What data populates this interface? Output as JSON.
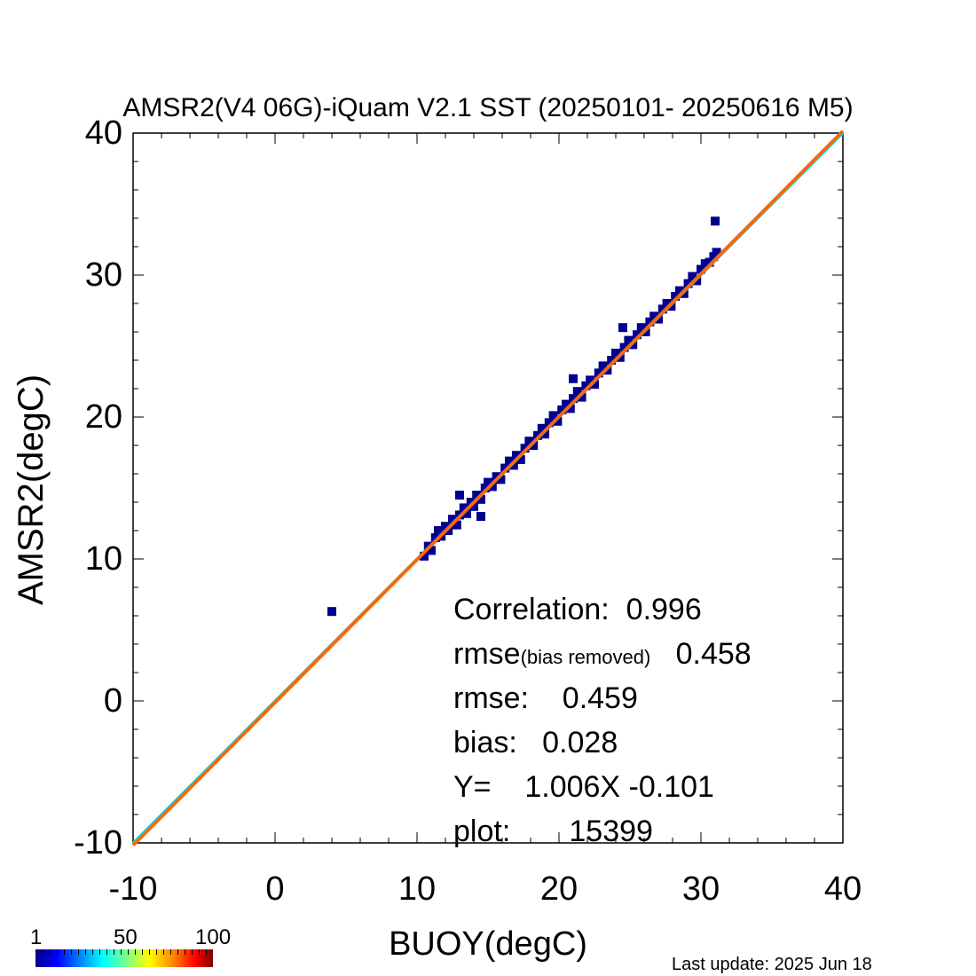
{
  "chart_data": {
    "type": "scatter",
    "title": "AMSR2(V4 06G)-iQuam V2.1 SST (20250101- 20250616 M5)",
    "xlabel": "BUOY(degC)",
    "ylabel": "AMSR2(degC)",
    "xlim": [
      -10,
      40
    ],
    "ylim": [
      -10,
      40
    ],
    "x_ticks": [
      "-10",
      "0",
      "10",
      "20",
      "30",
      "40"
    ],
    "y_ticks": [
      "-10",
      "0",
      "10",
      "20",
      "30",
      "40"
    ],
    "grid": false,
    "colorbar": {
      "labels": [
        "1",
        "50",
        "100"
      ]
    },
    "stats": {
      "correlation_label": "Correlation:",
      "correlation_value": "0.996",
      "rmse_br_label": "rmse",
      "rmse_br_sub": "(bias removed)",
      "rmse_br_value": "0.458",
      "rmse_label": "rmse:",
      "rmse_value": "0.459",
      "bias_label": "bias:",
      "bias_value": "0.028",
      "fit_label": "Y=",
      "fit_value": "1.006X -0.101",
      "plot_label": "plot:",
      "plot_value": "15399"
    },
    "series": [
      {
        "color": "#00008f",
        "density_min": 1,
        "points": [
          [
            10.5,
            10.2
          ],
          [
            10.8,
            10.9
          ],
          [
            11.0,
            10.6
          ],
          [
            11.3,
            11.5
          ],
          [
            11.5,
            12.0
          ],
          [
            11.7,
            11.6
          ],
          [
            12.0,
            12.3
          ],
          [
            12.2,
            12.0
          ],
          [
            12.5,
            12.8
          ],
          [
            12.8,
            12.4
          ],
          [
            13.0,
            13.1
          ],
          [
            13.3,
            13.6
          ],
          [
            13.5,
            13.2
          ],
          [
            13.8,
            14.0
          ],
          [
            14.0,
            13.7
          ],
          [
            14.2,
            14.5
          ],
          [
            14.5,
            14.2
          ],
          [
            14.8,
            15.0
          ],
          [
            15.0,
            15.4
          ],
          [
            15.3,
            15.1
          ],
          [
            15.6,
            15.8
          ],
          [
            15.9,
            15.6
          ],
          [
            16.2,
            16.4
          ],
          [
            16.5,
            16.9
          ],
          [
            16.8,
            16.6
          ],
          [
            17.0,
            17.3
          ],
          [
            17.3,
            17.0
          ],
          [
            17.6,
            17.8
          ],
          [
            17.9,
            18.3
          ],
          [
            18.2,
            18.0
          ],
          [
            18.5,
            18.7
          ],
          [
            18.8,
            19.2
          ],
          [
            19.0,
            18.8
          ],
          [
            19.3,
            19.6
          ],
          [
            19.6,
            20.1
          ],
          [
            19.9,
            19.7
          ],
          [
            20.2,
            20.5
          ],
          [
            20.5,
            20.9
          ],
          [
            20.8,
            20.6
          ],
          [
            21.0,
            21.3
          ],
          [
            21.3,
            21.8
          ],
          [
            21.6,
            21.4
          ],
          [
            21.9,
            22.2
          ],
          [
            22.2,
            22.6
          ],
          [
            22.5,
            22.3
          ],
          [
            22.8,
            23.1
          ],
          [
            23.1,
            23.6
          ],
          [
            23.4,
            23.3
          ],
          [
            23.7,
            24.0
          ],
          [
            24.0,
            24.5
          ],
          [
            24.3,
            24.2
          ],
          [
            24.6,
            24.9
          ],
          [
            24.9,
            25.4
          ],
          [
            25.2,
            25.1
          ],
          [
            25.5,
            25.8
          ],
          [
            25.8,
            26.3
          ],
          [
            26.1,
            26.0
          ],
          [
            26.4,
            26.7
          ],
          [
            26.7,
            27.1
          ],
          [
            27.0,
            26.9
          ],
          [
            27.3,
            27.6
          ],
          [
            27.6,
            28.0
          ],
          [
            27.9,
            27.8
          ],
          [
            28.2,
            28.5
          ],
          [
            28.5,
            28.9
          ],
          [
            28.8,
            28.7
          ],
          [
            29.1,
            29.4
          ],
          [
            29.4,
            29.9
          ],
          [
            29.7,
            29.6
          ],
          [
            30.0,
            30.4
          ],
          [
            30.3,
            30.8
          ],
          [
            30.6,
            30.9
          ],
          [
            30.9,
            31.3
          ],
          [
            31.1,
            31.6
          ],
          [
            31.0,
            33.8
          ],
          [
            4.0,
            6.3
          ],
          [
            13.0,
            14.5
          ],
          [
            14.5,
            13.0
          ],
          [
            21.0,
            22.7
          ],
          [
            24.5,
            26.3
          ]
        ]
      },
      {
        "name": "",
        "color": "#00e5ff",
        "intercept": 0.0,
        "slope": 1.0
      },
      {
        "name": "",
        "color": "#f06a10",
        "intercept": -0.101,
        "slope": 1.006
      }
    ]
  },
  "footer": {
    "last_update": "Last update: 2025 Jun 18"
  }
}
